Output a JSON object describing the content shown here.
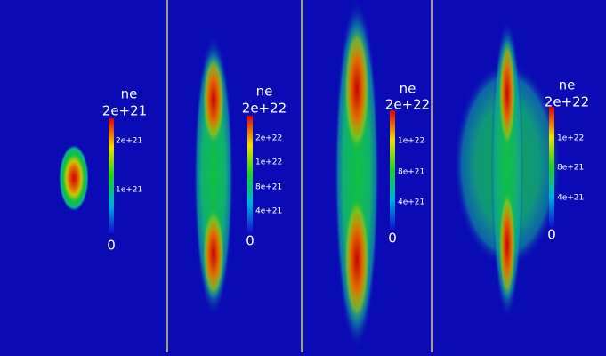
{
  "panels": [
    {
      "title": "ne",
      "max_label": "2e+21",
      "ticks": [
        "2e+21",
        "1e+21"
      ],
      "min_label": "0"
    },
    {
      "title": "ne",
      "max_label": "2e+22",
      "ticks": [
        "2e+22",
        "1e+22",
        "8e+21",
        "4e+21"
      ],
      "min_label": "0"
    },
    {
      "title": "ne",
      "max_label": "2e+22",
      "ticks": [
        "1e+22",
        "8e+21",
        "4e+21"
      ],
      "min_label": "0"
    },
    {
      "title": "ne",
      "max_label": "2e+22",
      "ticks": [
        "1e+22",
        "8e+21",
        "4e+21"
      ],
      "min_label": "0"
    }
  ]
}
